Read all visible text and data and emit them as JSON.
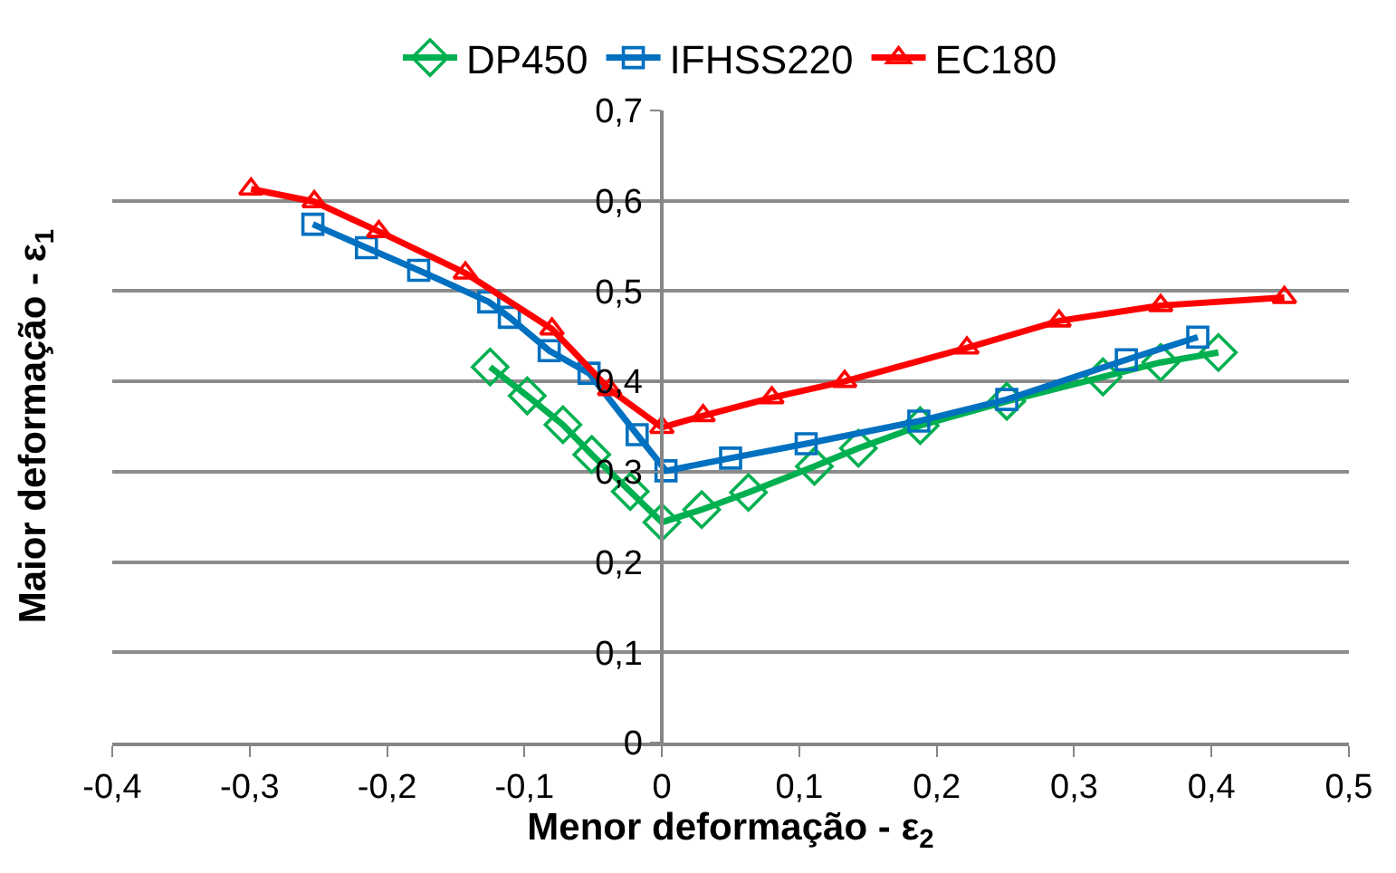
{
  "chart_data": {
    "type": "line",
    "xlabel": "Menor deformação - ε$_{2}$",
    "ylabel": "Maior deformação - ε$_{1}$",
    "xlim": [
      -0.4,
      0.5
    ],
    "xticks": [
      {
        "value": -0.4,
        "label": "-0,4"
      },
      {
        "value": -0.3,
        "label": "-0,3"
      },
      {
        "value": -0.2,
        "label": "-0,2"
      },
      {
        "value": -0.1,
        "label": "-0,1"
      },
      {
        "value": 0,
        "label": "0"
      },
      {
        "value": 0.1,
        "label": "0,1"
      },
      {
        "value": 0.2,
        "label": "0,2"
      },
      {
        "value": 0.3,
        "label": "0,3"
      },
      {
        "value": 0.4,
        "label": "0,4"
      },
      {
        "value": 0.5,
        "label": "0,5"
      }
    ],
    "ylim": [
      0,
      0.7
    ],
    "yticks": [
      {
        "value": 0,
        "label": "0"
      },
      {
        "value": 0.1,
        "label": "0,1"
      },
      {
        "value": 0.2,
        "label": "0,2"
      },
      {
        "value": 0.3,
        "label": "0,3"
      },
      {
        "value": 0.4,
        "label": "0,4"
      },
      {
        "value": 0.5,
        "label": "0,5"
      },
      {
        "value": 0.6,
        "label": "0,6"
      },
      {
        "value": 0.7,
        "label": "0,7"
      }
    ],
    "grid": "y",
    "legend": "top",
    "line_style": "solid",
    "series": [
      {
        "name": "DP450",
        "color": "#00b050",
        "marker": "diamond",
        "x": [
          -0.125,
          -0.098,
          -0.072,
          -0.051,
          -0.023,
          0.0,
          0.029,
          0.063,
          0.111,
          0.143,
          0.188,
          0.251,
          0.321,
          0.363,
          0.405
        ],
        "values": [
          0.416,
          0.384,
          0.352,
          0.319,
          0.278,
          0.244,
          0.258,
          0.277,
          0.306,
          0.326,
          0.351,
          0.378,
          0.405,
          0.421,
          0.432
        ]
      },
      {
        "name": "IFHSS220",
        "color": "#0070c0",
        "marker": "square",
        "x": [
          -0.254,
          -0.215,
          -0.177,
          -0.126,
          -0.111,
          -0.082,
          -0.053,
          -0.018,
          0.003,
          0.05,
          0.105,
          0.187,
          0.251,
          0.338,
          0.39
        ],
        "values": [
          0.574,
          0.548,
          0.523,
          0.488,
          0.471,
          0.434,
          0.409,
          0.341,
          0.301,
          0.315,
          0.331,
          0.356,
          0.38,
          0.424,
          0.449
        ]
      },
      {
        "name": "EC180",
        "color": "#ff0000",
        "marker": "triangle",
        "x": [
          -0.299,
          -0.253,
          -0.206,
          -0.143,
          -0.08,
          -0.038,
          0.0,
          0.03,
          0.08,
          0.133,
          0.222,
          0.289,
          0.363,
          0.453
        ],
        "values": [
          0.613,
          0.599,
          0.566,
          0.52,
          0.458,
          0.391,
          0.349,
          0.362,
          0.382,
          0.4,
          0.437,
          0.467,
          0.484,
          0.493
        ]
      }
    ]
  }
}
